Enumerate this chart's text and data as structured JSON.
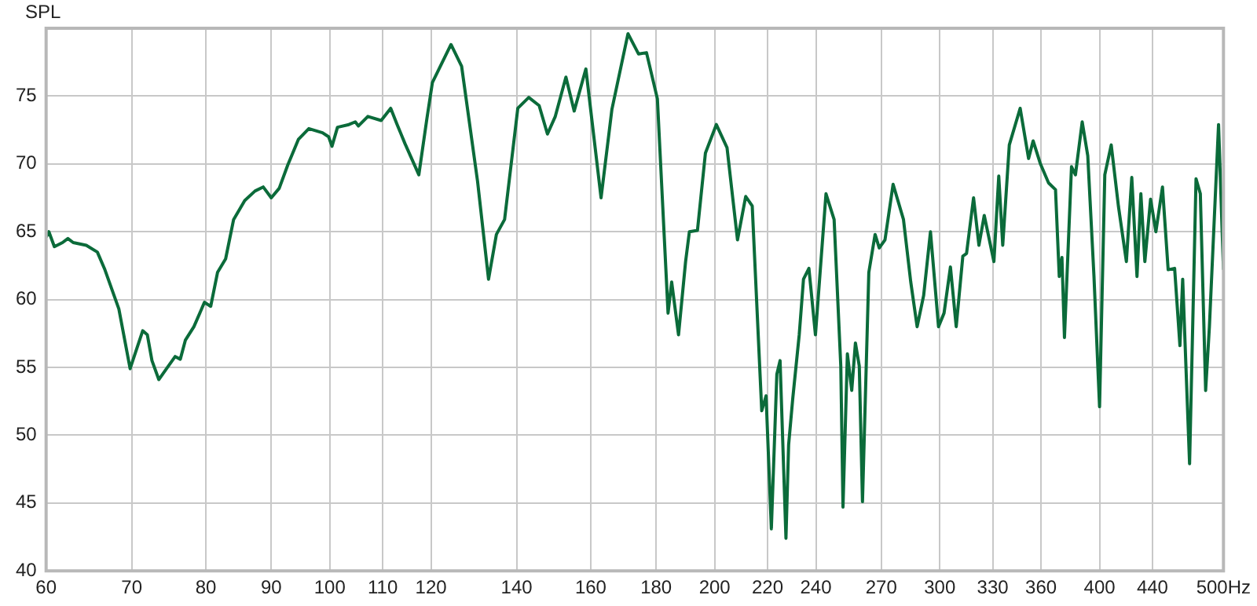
{
  "chart_data": {
    "type": "line",
    "ylabel": "SPL",
    "log": "x",
    "grid": true,
    "legend": false,
    "marker": "none",
    "line_style": "solid",
    "xlim": [
      60,
      500
    ],
    "ylim": [
      40,
      80
    ],
    "xticks": [
      60,
      70,
      80,
      90,
      100,
      110,
      120,
      140,
      160,
      180,
      200,
      220,
      240,
      270,
      300,
      330,
      360,
      400,
      440,
      {
        "value": 500,
        "label": "500Hz"
      }
    ],
    "yticks": [
      40,
      45,
      50,
      55,
      60,
      65,
      70,
      75
    ],
    "series": [
      {
        "color": "#0b6b3a",
        "x": [
          60,
          60.3,
          60.9,
          61.8,
          62.4,
          63.0,
          64.5,
          65.8,
          66.7,
          68.4,
          69.8,
          71.4,
          72.0,
          72.6,
          73.5,
          74.4,
          75.7,
          76.4,
          77.1,
          78.3,
          79.8,
          80.7,
          81.7,
          82.9,
          84.1,
          85.8,
          87.4,
          88.7,
          90.0,
          91.3,
          92.7,
          94.5,
          96.3,
          98.7,
          99.8,
          100.4,
          101.4,
          103.5,
          104.7,
          105.3,
          107.1,
          109.7,
          111.6,
          112.9,
          114.5,
          117.4,
          119.1,
          120.3,
          124.4,
          126.8,
          130.5,
          133.1,
          135.0,
          137.0,
          140.3,
          143.1,
          145.8,
          148.0,
          150.1,
          153.0,
          155.3,
          158.6,
          163.0,
          166.2,
          171.1,
          174.4,
          176.9,
          180.4,
          183.9,
          185.1,
          187.4,
          189.8,
          191.1,
          193.9,
          196.7,
          200.6,
          204.5,
          208.4,
          211.5,
          214,
          217.7,
          219.4,
          221.5,
          223.7,
          225,
          227.4,
          228.5,
          230.2,
          232.9,
          234.7,
          237,
          239.8,
          244.4,
          248,
          251,
          252,
          254,
          256,
          257.7,
          259.5,
          261,
          264,
          267,
          269,
          271.8,
          275.8,
          281,
          284.7,
          288,
          291.4,
          295,
          299.3,
          302.3,
          305.8,
          309,
          312.7,
          314.8,
          318.8,
          321.9,
          325,
          330.7,
          333.6,
          336,
          340,
          346.7,
          352,
          354.9,
          359.6,
          364.9,
          369.5,
          372,
          373.8,
          375.5,
          380.3,
          383,
          387.7,
          391.6,
          396,
          400,
          403.8,
          408.5,
          413.8,
          419.8,
          423.9,
          427.9,
          430.9,
          434,
          438.5,
          442.7,
          448,
          452.6,
          457.9,
          462.3,
          464.6,
          470.4,
          475.9,
          479.6,
          484.2,
          487.5,
          495.6,
          500
        ],
        "values": [
          64.6,
          65.0,
          63.9,
          64.2,
          64.5,
          64.2,
          64.0,
          63.5,
          62.2,
          59.3,
          54.9,
          57.7,
          57.4,
          55.5,
          54.1,
          54.8,
          55.8,
          55.6,
          57.0,
          58.0,
          59.8,
          59.5,
          62.0,
          63.0,
          65.9,
          67.3,
          68.0,
          68.3,
          67.5,
          68.2,
          69.9,
          71.8,
          72.6,
          72.3,
          72.0,
          71.3,
          72.7,
          72.9,
          73.1,
          72.8,
          73.5,
          73.2,
          74.1,
          72.9,
          71.5,
          69.2,
          73.3,
          76.0,
          78.8,
          77.2,
          68.7,
          61.5,
          64.8,
          65.9,
          74.1,
          74.9,
          74.3,
          72.2,
          73.5,
          76.4,
          73.9,
          77.0,
          67.5,
          74.0,
          79.6,
          78.1,
          78.2,
          74.8,
          59.0,
          61.3,
          57.4,
          62.8,
          65.0,
          65.1,
          70.8,
          72.9,
          71.2,
          64.4,
          67.6,
          66.9,
          51.8,
          52.9,
          43.1,
          54.5,
          55.5,
          42.4,
          49.3,
          52.7,
          57.4,
          61.5,
          62.3,
          57.4,
          67.8,
          65.9,
          55.1,
          44.7,
          56.0,
          53.3,
          56.8,
          55.1,
          45.1,
          62.0,
          64.8,
          63.8,
          64.4,
          68.5,
          65.9,
          61.3,
          58.0,
          60.3,
          65.0,
          58.0,
          59.0,
          62.4,
          58.0,
          63.2,
          63.4,
          67.5,
          64.0,
          66.2,
          62.8,
          69.1,
          64.0,
          71.4,
          74.1,
          70.4,
          71.7,
          70.0,
          68.6,
          68.1,
          61.7,
          63.1,
          57.2,
          69.8,
          69.2,
          73.1,
          70.6,
          61.7,
          52.1,
          69.2,
          71.4,
          66.9,
          62.8,
          69.0,
          61.7,
          67.8,
          62.8,
          67.4,
          65.0,
          68.3,
          62.2,
          62.3,
          56.6,
          61.5,
          47.9,
          68.9,
          67.8,
          53.3,
          58.0,
          72.9,
          62.2
        ]
      }
    ]
  }
}
